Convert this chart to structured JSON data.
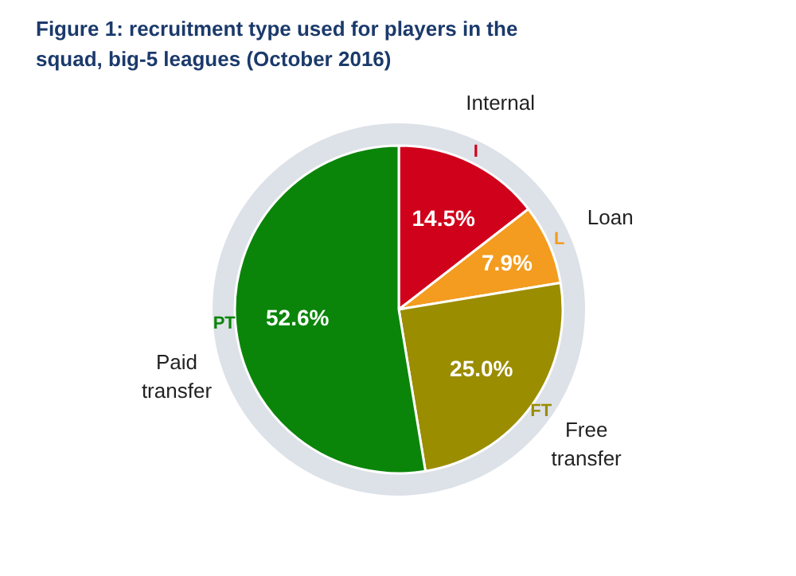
{
  "chart_data": {
    "type": "pie",
    "title": "Figure 1: recruitment type used for players in the squad, big-5 leagues (October 2016)",
    "categories": [
      "Internal",
      "Loan",
      "Free transfer",
      "Paid transfer"
    ],
    "values": [
      14.5,
      7.9,
      25.0,
      52.6
    ],
    "colors": [
      "#d0021b",
      "#f39c1f",
      "#9a8d00",
      "#0a850a"
    ],
    "annotations": [
      "I",
      "L",
      "FT",
      "PT"
    ],
    "value_labels": [
      "14.5%",
      "7.9%",
      "25.0%",
      "52.6%"
    ]
  }
}
